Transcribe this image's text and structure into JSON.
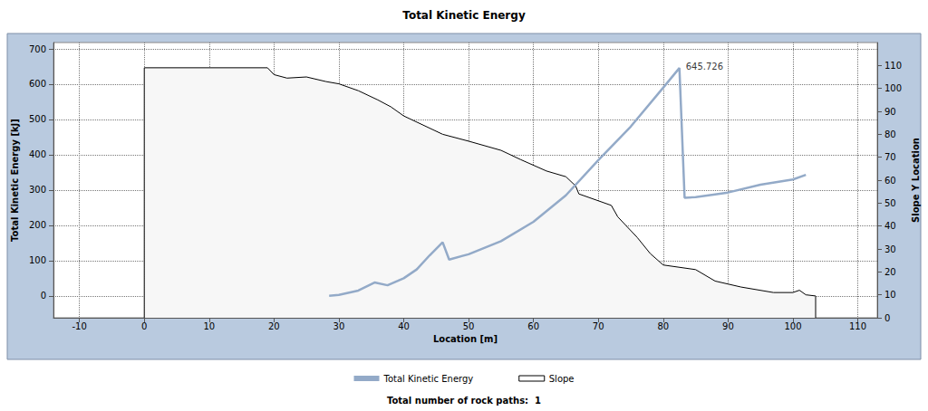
{
  "chart_data": {
    "type": "line",
    "title": "Total Kinetic Energy",
    "x_label": "Location [m]",
    "y_label": "Total Kinetic Energy [kJ]",
    "y2_label": "Slope Y Location",
    "footer": "Total number of rock paths:  1",
    "xlim": [
      -14,
      113
    ],
    "xticks": [
      -10,
      0,
      10,
      20,
      30,
      40,
      50,
      60,
      70,
      80,
      90,
      100,
      110
    ],
    "ylim": [
      -62,
      718
    ],
    "yticks": [
      0,
      100,
      200,
      300,
      400,
      500,
      600,
      700
    ],
    "y2lim": [
      0,
      120
    ],
    "y2ticks": [
      0,
      10,
      20,
      30,
      40,
      50,
      60,
      70,
      80,
      90,
      100,
      110
    ],
    "grid": true,
    "legend": "bottom",
    "series": [
      {
        "name": "Total Kinetic Energy",
        "type": "line",
        "color": "#93aac8",
        "x": [
          28.5,
          30,
          33,
          35.5,
          37.5,
          40,
          42,
          44,
          46,
          47,
          50,
          55,
          60,
          65,
          70,
          75,
          80,
          82.5,
          83.3,
          85,
          90,
          95,
          100,
          102
        ],
        "values": [
          0,
          3,
          15,
          38,
          30,
          50,
          75,
          115,
          152,
          103,
          118,
          155,
          210,
          285,
          385,
          480,
          590,
          645.726,
          278,
          280,
          293,
          315,
          330,
          343
        ]
      },
      {
        "name": "Slope",
        "type": "area",
        "axis": "y2",
        "color": "#000000",
        "x": [
          0,
          0,
          19,
          20,
          22,
          25,
          28,
          30,
          33,
          36,
          38,
          40,
          43,
          46,
          50,
          55,
          58,
          62,
          65,
          66.5,
          67,
          72,
          73,
          76,
          78,
          80,
          85,
          88,
          92,
          97,
          100,
          101,
          102,
          103.5,
          103.5
        ],
        "values": [
          0,
          109,
          109,
          106,
          104.5,
          105,
          103,
          102,
          99,
          95,
          92,
          88,
          84,
          80,
          77,
          73,
          69,
          64,
          61.5,
          57.5,
          54,
          49,
          44,
          35,
          28,
          23,
          21,
          16,
          13.4,
          11,
          11,
          12,
          10,
          9.5,
          0
        ]
      }
    ],
    "annotations": [
      {
        "x": 82.5,
        "y": 645.726,
        "text": "645.726"
      }
    ]
  }
}
